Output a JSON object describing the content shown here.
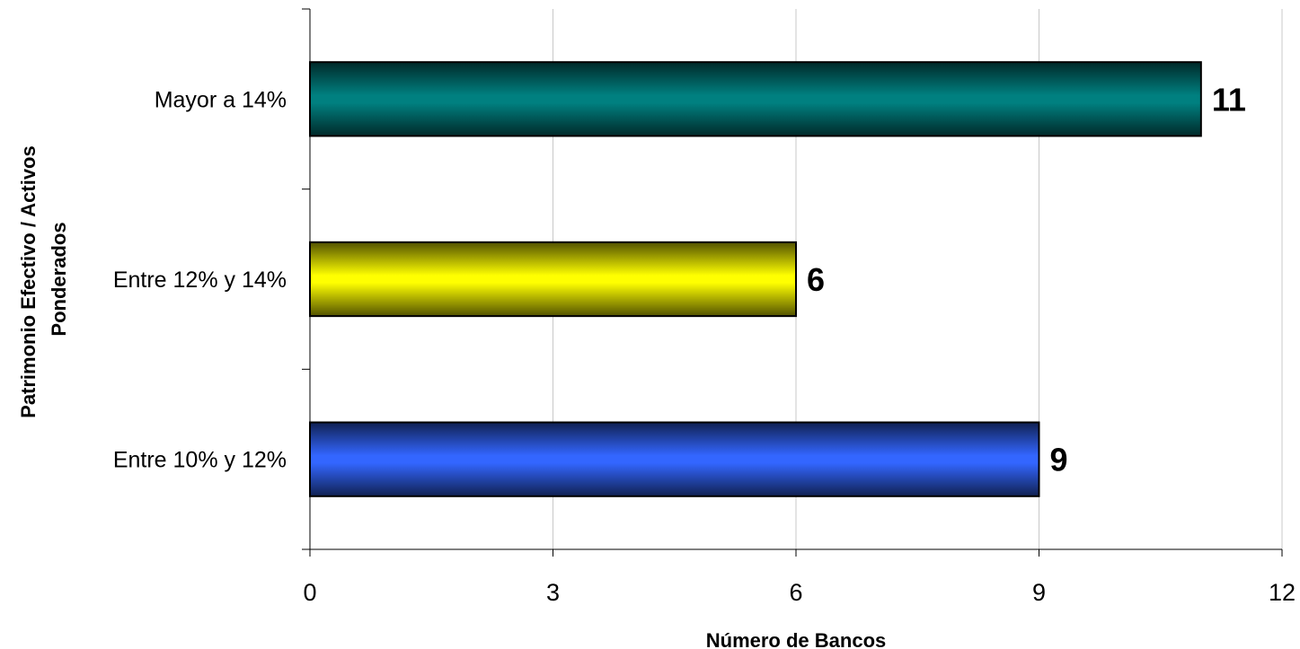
{
  "chart_data": {
    "type": "bar",
    "orientation": "horizontal",
    "categories": [
      "Mayor a 14%",
      "Entre 12% y 14%",
      "Entre 10% y 12%"
    ],
    "values": [
      11,
      6,
      9
    ],
    "bar_colors": [
      "#008080",
      "#ffff00",
      "#3366ff"
    ],
    "xlabel": "Número de Bancos",
    "ylabel_lines": [
      "Patrimonio Efectivo / Activos",
      "Ponderados"
    ],
    "xlim": [
      0,
      12
    ],
    "x_ticks": [
      0,
      3,
      6,
      9,
      12
    ],
    "x_tick_labels": [
      "0",
      "3",
      "6",
      "9",
      "12"
    ],
    "data_labels": [
      "11",
      "6",
      "9"
    ],
    "grid": "vertical",
    "legend": "none"
  }
}
